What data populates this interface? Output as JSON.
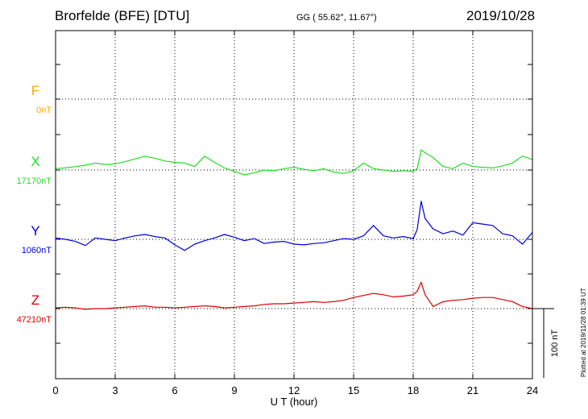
{
  "header": {
    "station": "Brorfelde (BFE)  [DTU]",
    "coords": "GG ( 55.62°,  11.67°)",
    "date": "2019/10/28"
  },
  "plotted_note": "Plotted at 2019/11/28 01:39 UT",
  "chart_data": {
    "type": "line",
    "title": "Brorfelde (BFE)  [DTU]",
    "xlabel": "U T (hour)",
    "xlim": [
      0,
      24
    ],
    "xticks": [
      "0",
      "3",
      "6",
      "9",
      "12",
      "15",
      "18",
      "21",
      "24"
    ],
    "grid": true,
    "scale_bar_label": "100 nT",
    "scale_bar_nT": 100,
    "series": [
      {
        "name": "F",
        "baseline_label": "0nT",
        "color": "#FFA500",
        "baseline_nT": 0,
        "x": [],
        "y": []
      },
      {
        "name": "X",
        "baseline_label": "17170nT",
        "color": "#22DD22",
        "baseline_nT": 17170,
        "x": [
          0,
          0.5,
          1,
          1.5,
          2,
          2.5,
          3,
          3.5,
          4,
          4.5,
          5,
          5.5,
          6,
          6.5,
          7,
          7.5,
          8,
          8.5,
          9,
          9.5,
          10,
          10.5,
          11,
          11.5,
          12,
          12.5,
          13,
          13.5,
          14,
          14.5,
          15,
          15.5,
          16,
          16.5,
          17,
          17.5,
          18,
          18.2,
          18.4,
          18.6,
          19,
          19.5,
          20,
          20.5,
          21,
          21.5,
          22,
          22.5,
          23,
          23.5,
          24
        ],
        "y": [
          17172,
          17173,
          17175,
          17177,
          17180,
          17178,
          17179,
          17182,
          17186,
          17190,
          17187,
          17183,
          17181,
          17180,
          17175,
          17190,
          17181,
          17173,
          17168,
          17163,
          17166,
          17170,
          17169,
          17172,
          17174,
          17171,
          17169,
          17172,
          17167,
          17165,
          17169,
          17180,
          17172,
          17170,
          17168,
          17169,
          17168,
          17172,
          17199,
          17195,
          17188,
          17175,
          17172,
          17180,
          17175,
          17174,
          17173,
          17176,
          17180,
          17190,
          17185
        ]
      },
      {
        "name": "Y",
        "baseline_label": "1060nT",
        "color": "#0000DD",
        "baseline_nT": 1060,
        "x": [
          0,
          0.5,
          1,
          1.5,
          2,
          2.5,
          3,
          3.5,
          4,
          4.5,
          5,
          5.5,
          6,
          6.5,
          7,
          7.5,
          8,
          8.5,
          9,
          9.5,
          10,
          10.5,
          11,
          11.5,
          12,
          12.5,
          13,
          13.5,
          14,
          14.5,
          15,
          15.5,
          16,
          16.5,
          17,
          17.5,
          18,
          18.2,
          18.4,
          18.6,
          19,
          19.5,
          20,
          20.5,
          21,
          21.5,
          22,
          22.5,
          23,
          23.5,
          24
        ],
        "y": [
          1062,
          1060,
          1057,
          1051,
          1062,
          1060,
          1058,
          1062,
          1065,
          1067,
          1064,
          1062,
          1052,
          1044,
          1053,
          1058,
          1062,
          1067,
          1063,
          1058,
          1061,
          1054,
          1056,
          1057,
          1053,
          1052,
          1054,
          1055,
          1058,
          1061,
          1060,
          1065,
          1080,
          1065,
          1062,
          1064,
          1061,
          1074,
          1115,
          1090,
          1075,
          1068,
          1072,
          1066,
          1084,
          1082,
          1080,
          1068,
          1065,
          1053,
          1070
        ]
      },
      {
        "name": "Z",
        "baseline_label": "47210nT",
        "color": "#DD0000",
        "baseline_nT": 47210,
        "x": [
          0,
          0.5,
          1,
          1.5,
          2,
          2.5,
          3,
          3.5,
          4,
          4.5,
          5,
          5.5,
          6,
          6.5,
          7,
          7.5,
          8,
          8.5,
          9,
          9.5,
          10,
          10.5,
          11,
          11.5,
          12,
          12.5,
          13,
          13.5,
          14,
          14.5,
          15,
          15.5,
          16,
          16.5,
          17,
          17.5,
          18,
          18.2,
          18.4,
          18.6,
          19,
          19.5,
          20,
          20.5,
          21,
          21.5,
          22,
          22.5,
          23,
          23.5,
          24
        ],
        "y": [
          47211,
          47212,
          47211,
          47209,
          47210,
          47210,
          47211,
          47212,
          47213,
          47214,
          47212,
          47212,
          47211,
          47212,
          47213,
          47214,
          47213,
          47211,
          47212,
          47213,
          47214,
          47216,
          47217,
          47217,
          47218,
          47219,
          47220,
          47219,
          47220,
          47222,
          47226,
          47229,
          47232,
          47230,
          47227,
          47228,
          47230,
          47235,
          47248,
          47230,
          47213,
          47220,
          47222,
          47223,
          47225,
          47226,
          47226,
          47223,
          47220,
          47213,
          47210
        ]
      }
    ]
  }
}
